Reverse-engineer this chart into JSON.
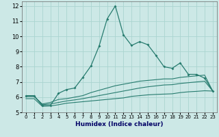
{
  "title": "",
  "xlabel": "Humidex (Indice chaleur)",
  "ylabel": "",
  "background_color": "#cce8e6",
  "grid_color": "#aad4d0",
  "line_color": "#267b6e",
  "x": [
    0,
    1,
    2,
    3,
    4,
    5,
    6,
    7,
    8,
    9,
    10,
    11,
    12,
    13,
    14,
    15,
    16,
    17,
    18,
    19,
    20,
    21,
    22,
    23
  ],
  "line1": [
    6.1,
    6.1,
    5.45,
    5.45,
    6.25,
    6.5,
    6.6,
    7.3,
    8.05,
    9.35,
    11.15,
    12.0,
    10.1,
    9.4,
    9.65,
    9.45,
    8.75,
    8.0,
    7.9,
    8.25,
    7.5,
    7.5,
    7.25,
    6.4
  ],
  "line2": [
    6.05,
    6.05,
    5.55,
    5.65,
    5.85,
    5.9,
    6.0,
    6.1,
    6.3,
    6.45,
    6.6,
    6.75,
    6.85,
    6.95,
    7.05,
    7.1,
    7.15,
    7.2,
    7.2,
    7.3,
    7.35,
    7.4,
    7.45,
    6.4
  ],
  "line3": [
    6.05,
    6.05,
    5.5,
    5.55,
    5.65,
    5.75,
    5.82,
    5.9,
    6.0,
    6.1,
    6.2,
    6.3,
    6.4,
    6.5,
    6.6,
    6.68,
    6.74,
    6.8,
    6.82,
    6.9,
    6.95,
    7.0,
    7.05,
    6.4
  ],
  "line4": [
    5.9,
    5.9,
    5.4,
    5.42,
    5.5,
    5.6,
    5.65,
    5.7,
    5.75,
    5.8,
    5.85,
    5.9,
    5.95,
    6.05,
    6.1,
    6.15,
    6.18,
    6.2,
    6.22,
    6.3,
    6.35,
    6.38,
    6.42,
    6.4
  ],
  "ylim": [
    5.0,
    12.3
  ],
  "yticks": [
    5,
    6,
    7,
    8,
    9,
    10,
    11,
    12
  ],
  "xlim": [
    -0.5,
    23.5
  ]
}
